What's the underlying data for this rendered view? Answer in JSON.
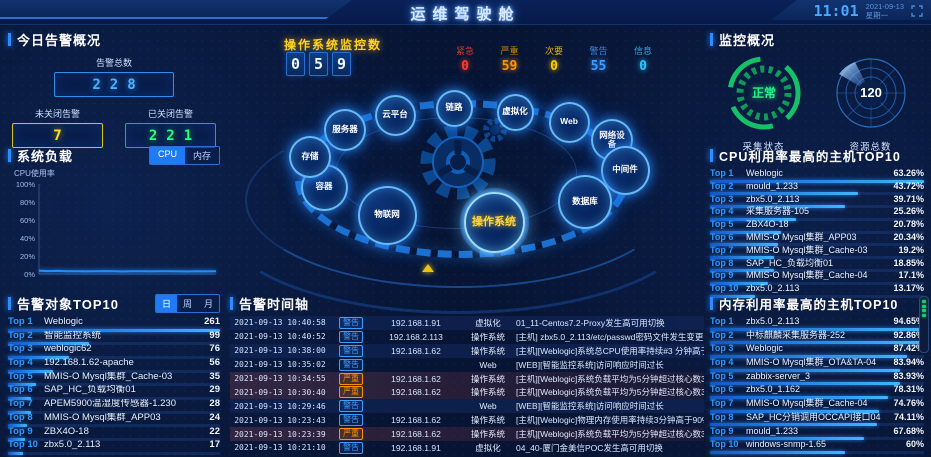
{
  "header": {
    "title": "运维驾驶舱",
    "time": "11:01",
    "date": "2021-09-13",
    "weekday": "星期一",
    "fullscreen_icon": "expand-corners"
  },
  "today_alarms": {
    "title": "今日告警概况",
    "total_label": "告警总数",
    "total": "228",
    "open_label": "未关闭告警",
    "open": "7",
    "closed_label": "已关闭告警",
    "closed": "221"
  },
  "system_load": {
    "title": "系统负载",
    "tabs": [
      "CPU",
      "内存"
    ],
    "active_tab": "CPU",
    "ylabel": "CPU使用率",
    "yticks": [
      "100%",
      "80%",
      "60%",
      "40%",
      "20%",
      "0%"
    ],
    "chart": {
      "type": "line",
      "series_name": "CPU使用率",
      "ylim": [
        0,
        100
      ],
      "values": [
        3.6,
        3.2,
        3.4,
        3.0,
        3.1,
        2.9,
        3.0,
        3.2,
        3.0,
        2.8,
        3.0,
        3.1,
        2.9,
        3.1,
        3.0,
        2.9,
        2.8,
        3.0,
        2.9,
        3.0
      ]
    }
  },
  "alarm_objects": {
    "title": "告警对象TOP10",
    "tabs": [
      "日",
      "周",
      "月"
    ],
    "active_tab": "日",
    "items": [
      {
        "rank": "Top 1",
        "name": "Weblogic",
        "value": "261",
        "pct": 100
      },
      {
        "rank": "Top 2",
        "name": "智能监控系统",
        "value": "99",
        "pct": 38
      },
      {
        "rank": "Top 3",
        "name": "weblogic62",
        "value": "76",
        "pct": 29
      },
      {
        "rank": "Top 4",
        "name": "192.168.1.62-apache",
        "value": "56",
        "pct": 21
      },
      {
        "rank": "Top 5",
        "name": "MMIS-O Mysql集群_Cache-03",
        "value": "35",
        "pct": 13
      },
      {
        "rank": "Top 6",
        "name": "SAP_HC_负载均衡01",
        "value": "29",
        "pct": 11
      },
      {
        "rank": "Top 7",
        "name": "APEM5900温湿度传感器-1.230",
        "value": "28",
        "pct": 11
      },
      {
        "rank": "Top 8",
        "name": "MMIS-O Mysql集群_APP03",
        "value": "24",
        "pct": 9
      },
      {
        "rank": "Top 9",
        "name": "ZBX4O-18",
        "value": "22",
        "pct": 8
      },
      {
        "rank": "Top 10",
        "name": "zbx5.0_2.113",
        "value": "17",
        "pct": 7
      }
    ]
  },
  "os_monitor": {
    "label": "操作系统监控数",
    "digits": [
      {
        "label": "0"
      },
      {
        "label": "5"
      },
      {
        "label": "9"
      }
    ]
  },
  "severity_stats": [
    {
      "label": "紧急",
      "value": "0",
      "color": "#ff3b30"
    },
    {
      "label": "严重",
      "value": "59",
      "color": "#ff9500"
    },
    {
      "label": "次要",
      "value": "0",
      "color": "#ffcc00"
    },
    {
      "label": "警告",
      "value": "55",
      "color": "#3f9dff"
    },
    {
      "label": "信息",
      "value": "0",
      "color": "#2fc4ff"
    }
  ],
  "ring": {
    "items": [
      {
        "label": "服务器"
      },
      {
        "label": "云平台"
      },
      {
        "label": "链路"
      },
      {
        "label": "虚拟化"
      },
      {
        "label": "Web"
      },
      {
        "label": "网络设备"
      },
      {
        "label": "中间件"
      },
      {
        "label": "数据库"
      },
      {
        "label": "操作系统",
        "active": true
      },
      {
        "label": "物联网"
      },
      {
        "label": "容器"
      },
      {
        "label": "存储"
      }
    ]
  },
  "alarm_timeline": {
    "title": "告警时间轴",
    "rows": [
      {
        "time": "2021-09-13 10:40:58",
        "severity": "警告",
        "level": "warning",
        "ip": "192.168.1.91",
        "category": "虚拟化",
        "desc": "01_11-Centos7.2-Proxy发生高可用切换"
      },
      {
        "time": "2021-09-13 10:40:52",
        "severity": "警告",
        "level": "warning",
        "ip": "192.168.2.113",
        "category": "操作系统",
        "desc": "[主机] zbx5.0_2.113/etc/passwd密码文件发生变更"
      },
      {
        "time": "2021-09-13 10:38:00",
        "severity": "警告",
        "level": "warning",
        "ip": "192.168.1.62",
        "category": "操作系统",
        "desc": "[主机][Weblogic]系统总CPU使用率持续#3 分钟高于90 %"
      },
      {
        "time": "2021-09-13 10:35:02",
        "severity": "警告",
        "level": "warning",
        "ip": "",
        "category": "Web",
        "desc": "[WEB][智能监控系统]访问响应时间过长"
      },
      {
        "time": "2021-09-13 10:34:55",
        "severity": "严重",
        "level": "critical",
        "ip": "192.168.1.62",
        "category": "操作系统",
        "desc": "[主机][Weblogic]系统负载平均为5分钟超过核心数3倍核心数，系统负载过高"
      },
      {
        "time": "2021-09-13 10:30:40",
        "severity": "严重",
        "level": "critical",
        "ip": "192.168.1.62",
        "category": "操作系统",
        "desc": "[主机][Weblogic]系统负载平均为5分钟超过核心数3倍核心数，系统负载过高"
      },
      {
        "time": "2021-09-13 10:29:46",
        "severity": "警告",
        "level": "warning",
        "ip": "",
        "category": "Web",
        "desc": "[WEB][智能监控系统]访问响应时间过长"
      },
      {
        "time": "2021-09-13 10:23:43",
        "severity": "警告",
        "level": "warning",
        "ip": "192.168.1.62",
        "category": "操作系统",
        "desc": "[主机][Weblogic]物理内存使用率持续3分钟高于90%"
      },
      {
        "time": "2021-09-13 10:23:39",
        "severity": "严重",
        "level": "critical",
        "ip": "192.168.1.62",
        "category": "操作系统",
        "desc": "[主机][Weblogic]系统负载平均为5分钟超过核心数3倍核心数，系统负载过高"
      },
      {
        "time": "2021-09-13 10:21:10",
        "severity": "警告",
        "level": "warning",
        "ip": "192.168.1.91",
        "category": "虚拟化",
        "desc": "04_40-厦门金美信POC发生高可用切换"
      }
    ]
  },
  "monitor_overview": {
    "title": "监控概况",
    "collect_status": "正常",
    "collect_label": "采集状态",
    "resource_total": "120",
    "resource_label": "资源总数"
  },
  "cpu_top10": {
    "title": "CPU利用率最高的主机TOP10",
    "items": [
      {
        "rank": "Top 1",
        "name": "Weblogic",
        "value": "63.26%",
        "pct": 100
      },
      {
        "rank": "Top 2",
        "name": "mould_1.233",
        "value": "43.72%",
        "pct": 69
      },
      {
        "rank": "Top 3",
        "name": "zbx5.0_2.113",
        "value": "39.71%",
        "pct": 63
      },
      {
        "rank": "Top 4",
        "name": "采集服务器-105",
        "value": "25.26%",
        "pct": 40
      },
      {
        "rank": "Top 5",
        "name": "ZBX4O-18",
        "value": "20.78%",
        "pct": 33
      },
      {
        "rank": "Top 6",
        "name": "MMIS-O Mysql集群_APP03",
        "value": "20.34%",
        "pct": 32
      },
      {
        "rank": "Top 7",
        "name": "MMIS-O Mysql集群_Cache-03",
        "value": "19.2%",
        "pct": 30
      },
      {
        "rank": "Top 8",
        "name": "SAP_HC_负载均衡01",
        "value": "18.85%",
        "pct": 30
      },
      {
        "rank": "Top 9",
        "name": "MMIS-O Mysql集群_Cache-04",
        "value": "17.1%",
        "pct": 27
      },
      {
        "rank": "Top 10",
        "name": "zbx5.0_2.113",
        "value": "13.17%",
        "pct": 21
      }
    ]
  },
  "mem_top10": {
    "title": "内存利用率最高的主机TOP10",
    "items": [
      {
        "rank": "Top 1",
        "name": "zbx5.0_2.113",
        "value": "94.65%",
        "pct": 100
      },
      {
        "rank": "Top 2",
        "name": "中标麒麟采集服务器-252",
        "value": "92.86%",
        "pct": 98
      },
      {
        "rank": "Top 3",
        "name": "Weblogic",
        "value": "87.42%",
        "pct": 92
      },
      {
        "rank": "Top 4",
        "name": "MMIS-O Mysql集群_OTA&TA-04",
        "value": "83.94%",
        "pct": 89
      },
      {
        "rank": "Top 5",
        "name": "zabbix-server_3",
        "value": "83.93%",
        "pct": 89
      },
      {
        "rank": "Top 6",
        "name": "zbx5.0_1.162",
        "value": "78.31%",
        "pct": 83
      },
      {
        "rank": "Top 7",
        "name": "MMIS-O Mysql集群_Cache-04",
        "value": "74.76%",
        "pct": 79
      },
      {
        "rank": "Top 8",
        "name": "SAP_HC分销调用OCCAPI接口04",
        "value": "74.11%",
        "pct": 78
      },
      {
        "rank": "Top 9",
        "name": "mould_1.233",
        "value": "67.68%",
        "pct": 72
      },
      {
        "rank": "Top 10",
        "name": "windows-snmp-1.65",
        "value": "60%",
        "pct": 63
      }
    ]
  }
}
